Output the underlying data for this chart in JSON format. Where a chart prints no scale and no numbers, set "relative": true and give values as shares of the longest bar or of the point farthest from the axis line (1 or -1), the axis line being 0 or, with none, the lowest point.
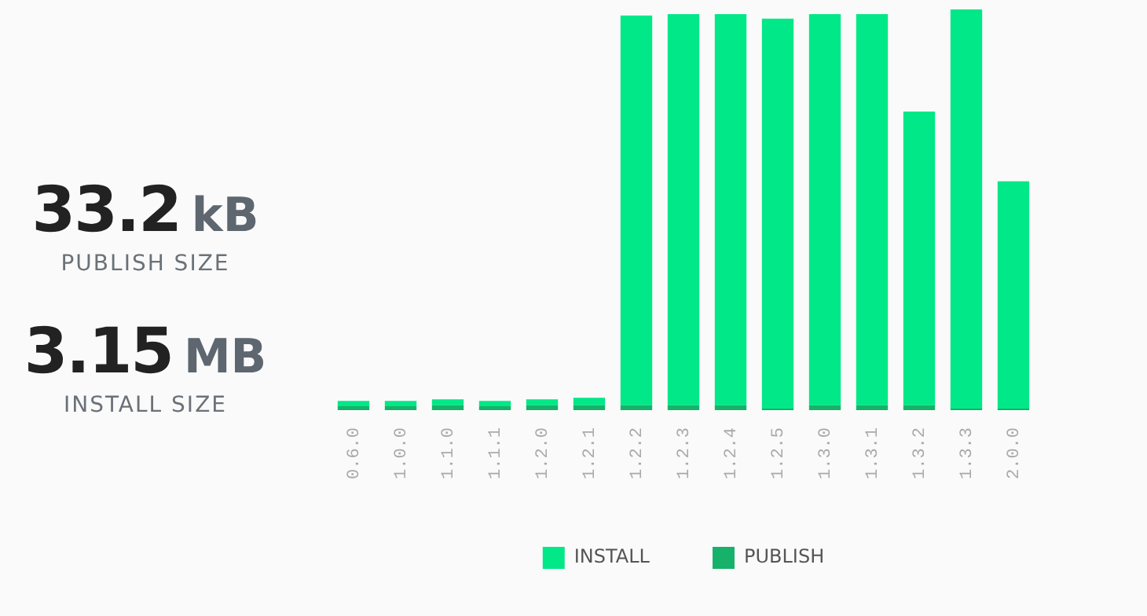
{
  "chart_data": {
    "type": "bar",
    "relative": true,
    "stacked": true,
    "legend": "bottom",
    "grid": false,
    "categories": [
      "0.6.0",
      "1.0.0",
      "1.1.0",
      "1.1.1",
      "1.2.0",
      "1.2.1",
      "1.2.2",
      "1.2.3",
      "1.2.4",
      "1.2.5",
      "1.3.0",
      "1.3.1",
      "1.3.2",
      "1.3.3",
      "2.0.0"
    ],
    "series": [
      {
        "name": "PUBLISH",
        "color": "#17b26a",
        "values": [
          0.01,
          0.01,
          0.012,
          0.01,
          0.012,
          0.012,
          0.012,
          0.012,
          0.012,
          0.004,
          0.012,
          0.012,
          0.012,
          0.004,
          0.004
        ]
      },
      {
        "name": "INSTALL",
        "color": "#00e887",
        "values": [
          0.013,
          0.013,
          0.015,
          0.013,
          0.015,
          0.019,
          0.973,
          0.976,
          0.976,
          0.973,
          0.976,
          0.976,
          0.733,
          0.996,
          0.567
        ]
      }
    ],
    "annotations": [
      "33.2 kB",
      "PUBLISH SIZE",
      "3.15 MB",
      "INSTALL SIZE"
    ]
  }
}
